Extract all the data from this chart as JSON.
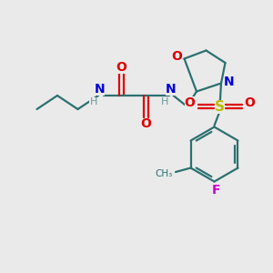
{
  "bg_color": "#eaeaea",
  "bond_color": "#2d7070",
  "nitrogen_color": "#0000dd",
  "oxygen_color": "#dd0000",
  "sulfur_color": "#bbbb00",
  "fluorine_color": "#cc00cc",
  "h_color": "#6a9a9a",
  "line_width": 1.6,
  "figsize": [
    3.0,
    3.0
  ],
  "dpi": 100,
  "xlim": [
    0,
    10
  ],
  "ylim": [
    0,
    10
  ]
}
